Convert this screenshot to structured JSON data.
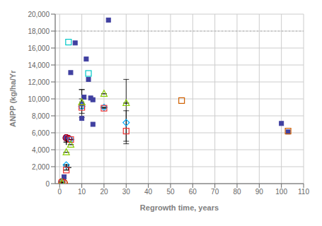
{
  "chart_data": {
    "type": "scatter",
    "xlabel": "Regrowth time, years",
    "ylabel": "ANPP (kg/ha/Yr",
    "xlim": [
      -2,
      110
    ],
    "ylim": [
      0,
      20000
    ],
    "xticks": [
      0,
      10,
      20,
      30,
      40,
      50,
      60,
      70,
      80,
      90,
      100,
      110
    ],
    "yticks": [
      0,
      {
        "value": 2000,
        "label": "2,000"
      },
      {
        "value": 4000,
        "label": "4,000"
      },
      {
        "value": 6000,
        "label": "6,000"
      },
      {
        "value": 8000,
        "label": "8,000"
      },
      {
        "value": 10000,
        "label": "10,000"
      },
      {
        "value": 12000,
        "label": "12,000"
      },
      {
        "value": 14000,
        "label": "14,000"
      },
      {
        "value": 16000,
        "label": "16,000"
      },
      {
        "value": 18000,
        "label": "18,000"
      },
      {
        "value": 20000,
        "label": "20,000"
      }
    ],
    "grid": true,
    "reference_lines": [
      {
        "y": 18000,
        "line_style": "dotted",
        "color": "#b0b0b0"
      }
    ],
    "series": [
      {
        "color": "#4040a0",
        "marker": "square",
        "x": [
          2,
          3,
          5,
          7,
          10,
          10,
          11,
          12,
          13,
          14,
          15,
          15,
          22,
          100,
          103
        ],
        "values": [
          800,
          5400,
          13100,
          16600,
          9400,
          7700,
          10200,
          14700,
          12300,
          10100,
          9900,
          7000,
          19300,
          7100,
          6100
        ]
      },
      {
        "color": "#00c8c8",
        "marker": "open_square",
        "x": [
          4,
          13
        ],
        "values": [
          16700,
          13000
        ]
      },
      {
        "color": "#d06000",
        "marker": "open_square",
        "x": [
          55,
          103
        ],
        "values": [
          9800,
          6200
        ]
      },
      {
        "color": "#0000cc",
        "marker": "open_circle",
        "x": [
          3,
          4
        ],
        "values": [
          5400,
          5300
        ]
      },
      {
        "color": "#b8b800",
        "marker": "open_circle",
        "x": [
          1,
          2
        ],
        "values": [
          200,
          100
        ]
      },
      {
        "color": "#cc0000",
        "marker": "open_circle",
        "x": [
          3,
          4,
          1,
          2
        ],
        "values": [
          5400,
          5300,
          200,
          100
        ]
      },
      {
        "color": "#000000",
        "marker": "plus",
        "x": [
          3,
          3,
          4
        ],
        "values": [
          4900,
          2000,
          1900
        ]
      },
      {
        "color": "#00aaff",
        "marker": "open_diamond",
        "x": [
          1,
          3,
          5,
          10,
          20,
          30
        ],
        "values": [
          200,
          2200,
          5200,
          9100,
          9000,
          7200
        ],
        "yerr_lo": [
          0,
          0,
          0,
          1300,
          0,
          2200
        ],
        "yerr_hi": [
          0,
          0,
          0,
          2000,
          0,
          5100
        ]
      },
      {
        "color": "#ee3333",
        "marker": "open_square",
        "x": [
          1,
          3,
          5,
          10,
          20,
          30
        ],
        "values": [
          100,
          1600,
          5200,
          9000,
          8900,
          6200
        ],
        "yerr_lo": [
          0,
          0,
          0,
          700,
          0,
          1500
        ],
        "yerr_hi": [
          0,
          0,
          0,
          1000,
          0,
          2400
        ]
      },
      {
        "color": "#88cc00",
        "marker": "open_triangle",
        "x": [
          1,
          3,
          5,
          10,
          20,
          30
        ],
        "values": [
          100,
          3700,
          4600,
          9600,
          10600,
          9500
        ],
        "yerr_lo": [
          0,
          0,
          0,
          700,
          0,
          0
        ],
        "yerr_hi": [
          0,
          0,
          0,
          1500,
          0,
          0
        ]
      }
    ]
  }
}
